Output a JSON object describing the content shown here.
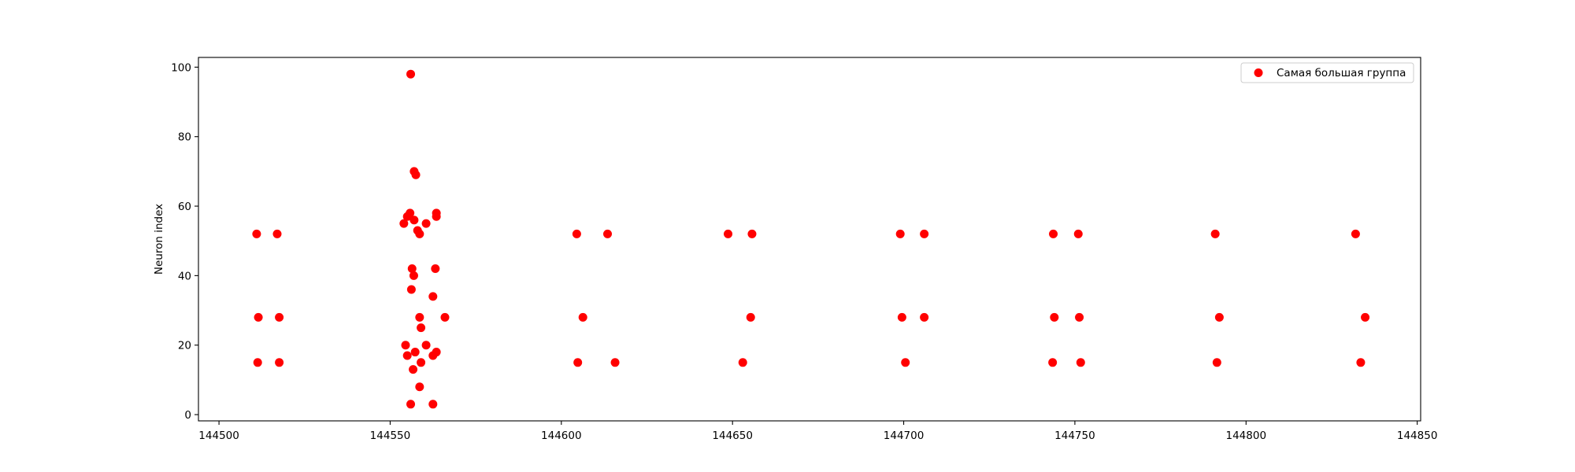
{
  "chart_data": {
    "type": "scatter",
    "title": "",
    "xlabel": "",
    "ylabel": "Neuron index",
    "xlim": [
      144494,
      144851
    ],
    "ylim": [
      -1.8,
      102.8
    ],
    "xticks": [
      144500,
      144550,
      144600,
      144650,
      144700,
      144750,
      144800,
      144850
    ],
    "xtick_labels": [
      "144500",
      "144550",
      "144600",
      "144650",
      "144700",
      "144750",
      "144800",
      "144850"
    ],
    "yticks": [
      0,
      20,
      40,
      60,
      80,
      100
    ],
    "ytick_labels": [
      "0",
      "20",
      "40",
      "60",
      "80",
      "100"
    ],
    "grid": false,
    "legend": {
      "position": "top-right"
    },
    "series": [
      {
        "name": "Самая большая группа",
        "color": "#ff0000",
        "points": [
          [
            144511.0,
            52
          ],
          [
            144511.5,
            28
          ],
          [
            144511.3,
            15
          ],
          [
            144517.0,
            52
          ],
          [
            144517.6,
            28
          ],
          [
            144517.6,
            15
          ],
          [
            144556.0,
            98
          ],
          [
            144557.0,
            70
          ],
          [
            144557.5,
            69
          ],
          [
            144554.0,
            55
          ],
          [
            144555.0,
            57
          ],
          [
            144555.8,
            58
          ],
          [
            144557.0,
            56
          ],
          [
            144558.0,
            53
          ],
          [
            144558.6,
            52
          ],
          [
            144560.5,
            55
          ],
          [
            144563.5,
            58
          ],
          [
            144563.5,
            57
          ],
          [
            144556.4,
            42
          ],
          [
            144556.9,
            40
          ],
          [
            144563.2,
            42
          ],
          [
            144556.2,
            36
          ],
          [
            144562.5,
            34
          ],
          [
            144558.6,
            28
          ],
          [
            144566.0,
            28
          ],
          [
            144559.0,
            25
          ],
          [
            144554.5,
            20
          ],
          [
            144560.5,
            20
          ],
          [
            144557.3,
            18
          ],
          [
            144563.5,
            18
          ],
          [
            144555.0,
            17
          ],
          [
            144562.5,
            17
          ],
          [
            144559.0,
            15
          ],
          [
            144556.7,
            13
          ],
          [
            144558.6,
            8
          ],
          [
            144556.0,
            3
          ],
          [
            144562.5,
            3
          ],
          [
            144604.5,
            52
          ],
          [
            144606.3,
            28
          ],
          [
            144604.8,
            15
          ],
          [
            144613.5,
            52
          ],
          [
            144615.7,
            15
          ],
          [
            144648.7,
            52
          ],
          [
            144655.7,
            52
          ],
          [
            144655.3,
            28
          ],
          [
            144653.0,
            15
          ],
          [
            144699.0,
            52
          ],
          [
            144699.5,
            28
          ],
          [
            144700.5,
            15
          ],
          [
            144706.0,
            52
          ],
          [
            144706.0,
            28
          ],
          [
            144743.7,
            52
          ],
          [
            144744.0,
            28
          ],
          [
            144743.5,
            15
          ],
          [
            144751.0,
            52
          ],
          [
            144751.3,
            28
          ],
          [
            144751.7,
            15
          ],
          [
            144791.0,
            52
          ],
          [
            144792.2,
            28
          ],
          [
            144791.5,
            15
          ],
          [
            144832.0,
            52
          ],
          [
            144834.8,
            28
          ],
          [
            144833.5,
            15
          ]
        ]
      }
    ]
  }
}
